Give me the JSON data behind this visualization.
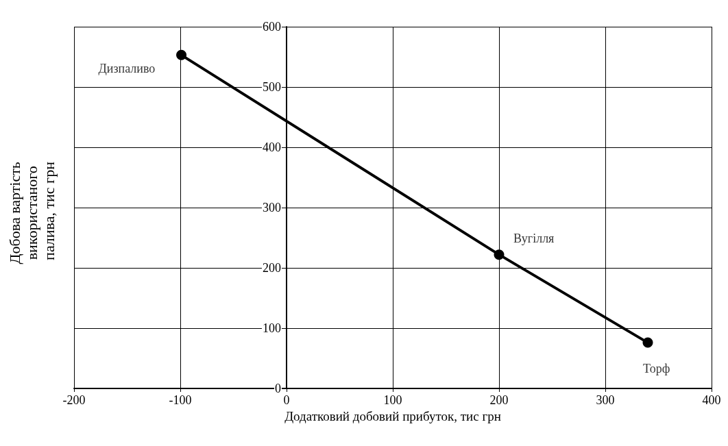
{
  "chart_data": {
    "type": "line",
    "xlabel": "Додатковий добовий прибуток, тис грн",
    "ylabel": "Добова вартість використаного палива, тис грн",
    "x": [
      -99,
      200,
      340
    ],
    "series": [
      {
        "color": "#000000",
        "values": [
          553,
          222,
          76
        ]
      }
    ],
    "xlim": [
      -200,
      400
    ],
    "xticks": [
      -200,
      -100,
      0,
      100,
      200,
      300,
      400
    ],
    "ylim": [
      0,
      600
    ],
    "yticks": [
      0,
      100,
      200,
      300,
      400,
      500,
      600
    ],
    "grid": true,
    "marker": "circle",
    "line_style": "solid",
    "annotations": [
      {
        "text": "Дизпаливо",
        "x": -99,
        "y": 553
      },
      {
        "text": "Вугілля",
        "x": 200,
        "y": 222
      },
      {
        "text": "Торф",
        "x": 340,
        "y": 76
      }
    ]
  }
}
